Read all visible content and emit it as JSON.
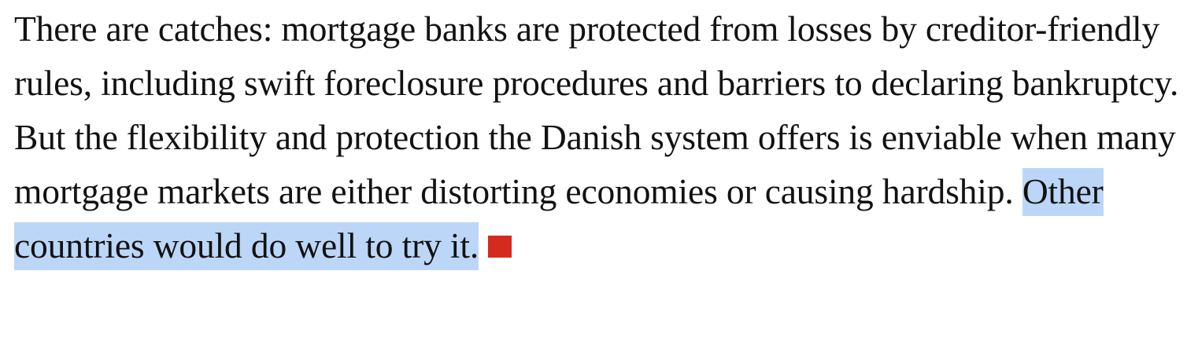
{
  "article": {
    "paragraph_text": "There are catches: mortgage banks are protected from losses by creditor-friendly rules, including swift foreclosure procedures and barriers to declaring bankruptcy. But the flexibility and protection the Danish system offers is enviable when many mortgage markets are either distorting economies or causing hardship.",
    "highlighted_text": "Other countries would do well to try it.",
    "selection_color": "#bcd6f7",
    "end_mark_color": "#d52b1e",
    "end_mark_icon": "red-square-end-mark-icon"
  }
}
